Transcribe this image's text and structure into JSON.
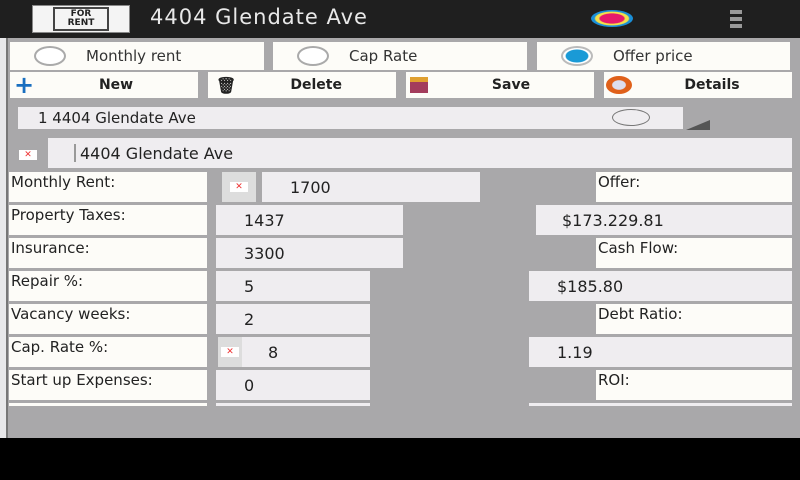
{
  "header": {
    "title": "4404 Glendate Ave",
    "logo_text": "FOR RENT",
    "menu_icon": "overflow-menu-icon",
    "status_icon": "record-icon"
  },
  "radios": [
    {
      "label": "Monthly rent",
      "selected": false
    },
    {
      "label": "Cap Rate",
      "selected": false
    },
    {
      "label": "Offer price",
      "selected": true
    }
  ],
  "toolbar": {
    "new": "New",
    "delete": "Delete",
    "save": "Save",
    "details": "Details"
  },
  "spinner": {
    "value": "1 4404 Glendate Ave"
  },
  "name_input": {
    "value": "4404 Glendate Ave"
  },
  "form": {
    "monthly_rent": {
      "label": "Monthly Rent:",
      "value": "1700"
    },
    "property_taxes": {
      "label": "Property Taxes:",
      "value": "1437"
    },
    "insurance": {
      "label": "Insurance:",
      "value": "3300"
    },
    "repair": {
      "label": "Repair %:",
      "value": "5"
    },
    "vacancy": {
      "label": "Vacancy weeks:",
      "value": "2"
    },
    "cap_rate": {
      "label": "Cap. Rate %:",
      "value": "8"
    },
    "startup": {
      "label": "Start up Expenses:",
      "value": "0"
    }
  },
  "results": {
    "offer": {
      "label": "Offer:",
      "value": "$173.229.81"
    },
    "cash_flow": {
      "label": "Cash Flow:",
      "value": "$185.80"
    },
    "debt_ratio": {
      "label": "Debt Ratio:",
      "value": "1.19"
    },
    "roi": {
      "label": "ROI:"
    }
  }
}
